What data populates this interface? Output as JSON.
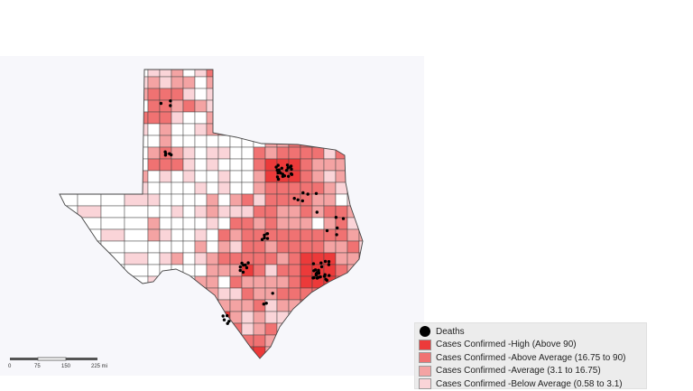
{
  "colors": {
    "high": "#ec3a3a",
    "above_average": "#f07272",
    "average": "#f4a3a3",
    "below_average": "#fad4d8",
    "none": "#ffffff",
    "outline": "#444444",
    "death_dot": "#000000"
  },
  "legend": {
    "items": [
      {
        "kind": "dot",
        "label": "Deaths",
        "color": "#000000"
      },
      {
        "kind": "swatch",
        "label": "Cases Confirmed -High (Above 90)",
        "color": "#ec3a3a"
      },
      {
        "kind": "swatch",
        "label": "Cases Confirmed -Above Average (16.75 to 90)",
        "color": "#f07272"
      },
      {
        "kind": "swatch",
        "label": "Cases Confirmed -Average (3.1 to 16.75)",
        "color": "#f4a3a3"
      },
      {
        "kind": "swatch",
        "label": "Cases Confirmed -Below Average (0.58 to 3.1)",
        "color": "#fad4d8"
      }
    ]
  },
  "scale_bar": {
    "ticks": [
      "0",
      "75",
      "150",
      "225 mi"
    ]
  }
}
